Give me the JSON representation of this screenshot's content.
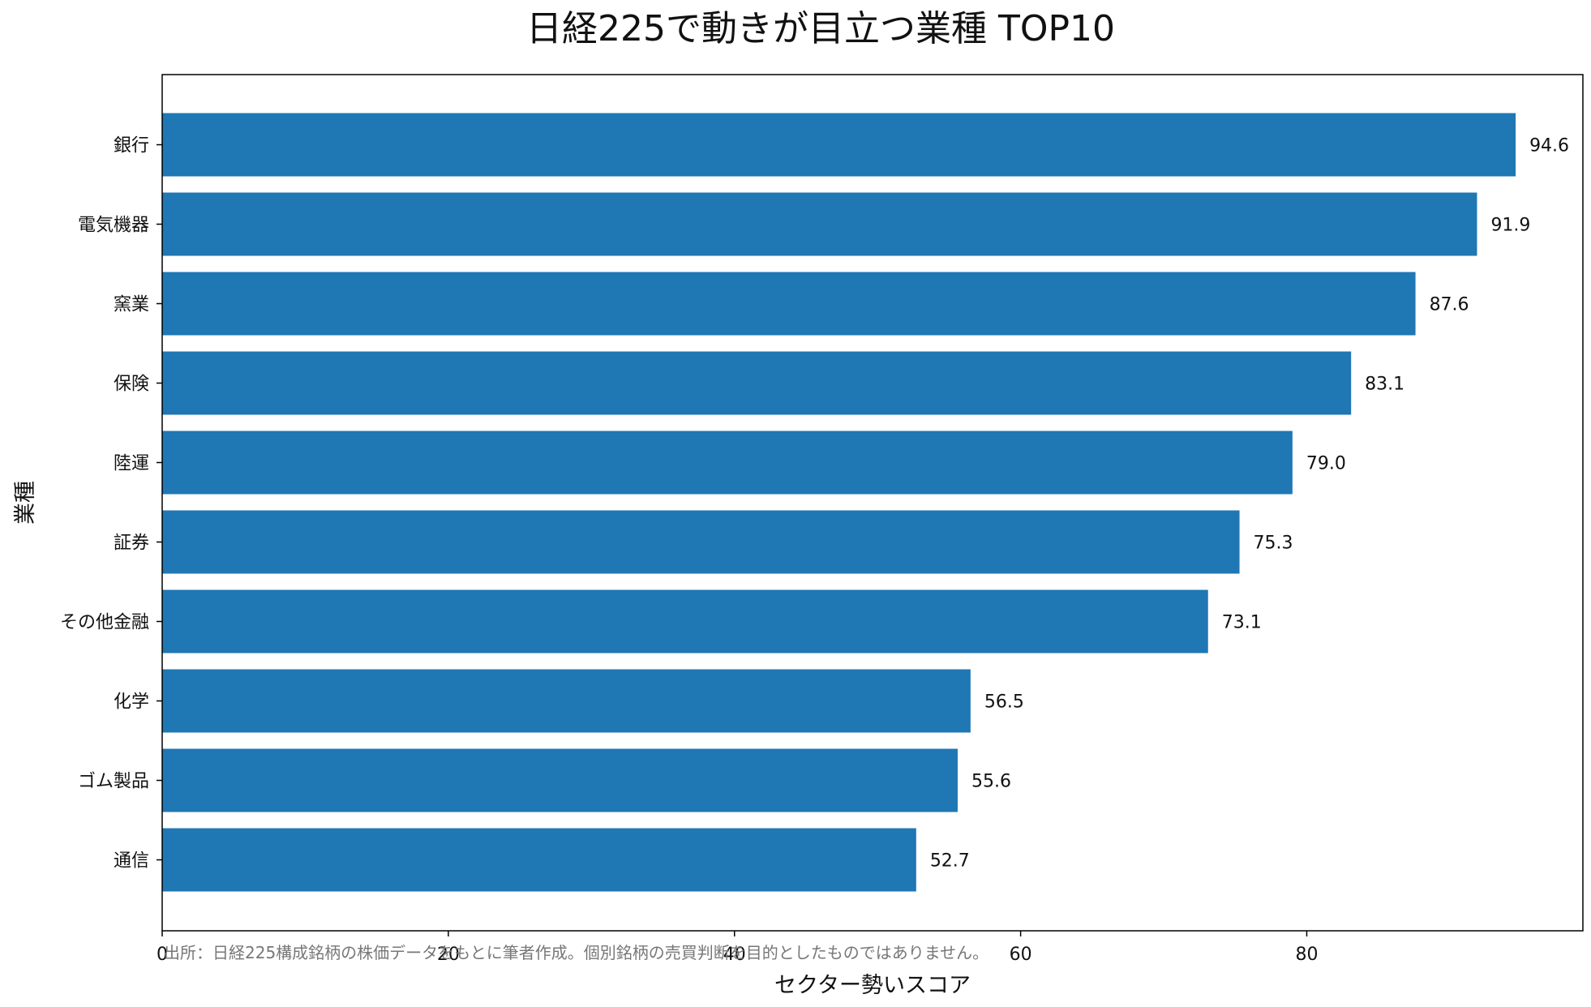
{
  "chart_data": {
    "type": "bar",
    "orientation": "horizontal",
    "title": "日経225で動きが目立つ業種 TOP10",
    "xlabel": "セクター勢いスコア",
    "ylabel": "業種",
    "categories": [
      "銀行",
      "電気機器",
      "窯業",
      "保険",
      "陸運",
      "証券",
      "その他金融",
      "化学",
      "ゴム製品",
      "通信"
    ],
    "values": [
      94.6,
      91.9,
      87.6,
      83.1,
      79.0,
      75.3,
      73.1,
      56.5,
      55.6,
      52.7
    ],
    "value_labels": [
      "94.6",
      "91.9",
      "87.6",
      "83.1",
      "79.0",
      "75.3",
      "73.1",
      "56.5",
      "55.6",
      "52.7"
    ],
    "xticks": [
      0,
      20,
      40,
      60,
      80
    ],
    "xtick_labels": [
      "0",
      "20",
      "40",
      "60",
      "80"
    ],
    "xlim": [
      0,
      99.3
    ],
    "bar_color": "#1f77b4",
    "grid": false,
    "note": "出所：日経225構成銘柄の株価データをもとに筆者作成。個別銘柄の売買判断を目的としたものではありません。"
  }
}
